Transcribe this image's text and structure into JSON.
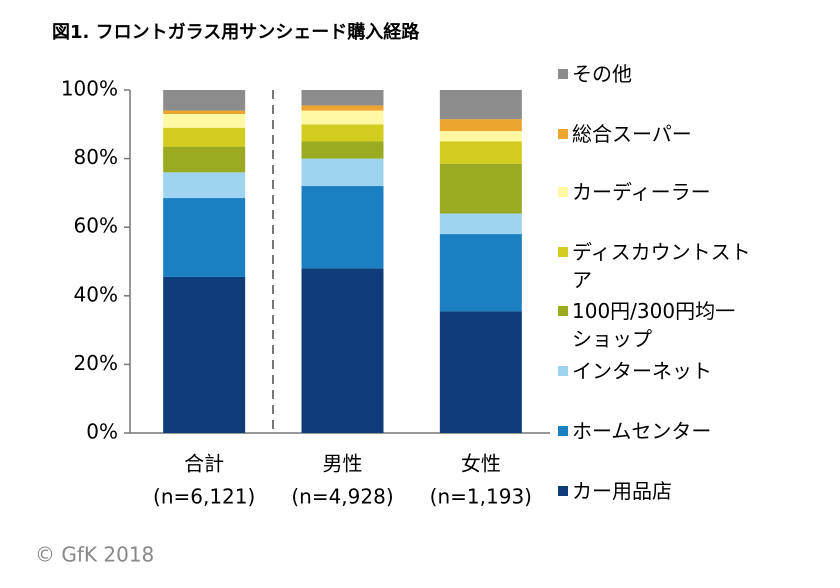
{
  "chart_data": {
    "type": "stacked_bar",
    "title": "図1. フロントガラス用サンシェード購入経路",
    "categories": [
      "合計",
      "男性",
      "女性"
    ],
    "category_notes": [
      "(n=6,121)",
      "(n=4,928)",
      "(n=1,193)"
    ],
    "series": [
      {
        "name": "カー用品店",
        "color": "#0f3d78",
        "values": [
          45.5,
          48,
          35.5
        ]
      },
      {
        "name": "ホームセンター",
        "color": "#1b80c2",
        "values": [
          23,
          24,
          22.5
        ]
      },
      {
        "name": "インターネット",
        "color": "#9fd4f0",
        "values": [
          7.5,
          8,
          6
        ]
      },
      {
        "name": "100円/300円均一ショップ",
        "color": "#9aab22",
        "values": [
          7.5,
          5,
          14.5
        ]
      },
      {
        "name": "ディスカウントストア",
        "color": "#d2cd1e",
        "values": [
          5.5,
          5,
          6.5
        ]
      },
      {
        "name": "カーディーラー",
        "color": "#fff9a6",
        "values": [
          4,
          4,
          3
        ]
      },
      {
        "name": "総合スーパー",
        "color": "#eea52f",
        "values": [
          1,
          1.5,
          3.5
        ]
      },
      {
        "name": "その他",
        "color": "#8c8c8c",
        "values": [
          6,
          4.5,
          8.5
        ]
      }
    ],
    "ylim": [
      0,
      100
    ],
    "yticks": [
      {
        "value": 0,
        "label": "0%"
      },
      {
        "value": 20,
        "label": "20%"
      },
      {
        "value": 40,
        "label": "40%"
      },
      {
        "value": 60,
        "label": "60%"
      },
      {
        "value": 80,
        "label": "80%"
      },
      {
        "value": 100,
        "label": "100%"
      }
    ],
    "grid": false,
    "legend": "right",
    "copyright": "© GfK 2018"
  }
}
